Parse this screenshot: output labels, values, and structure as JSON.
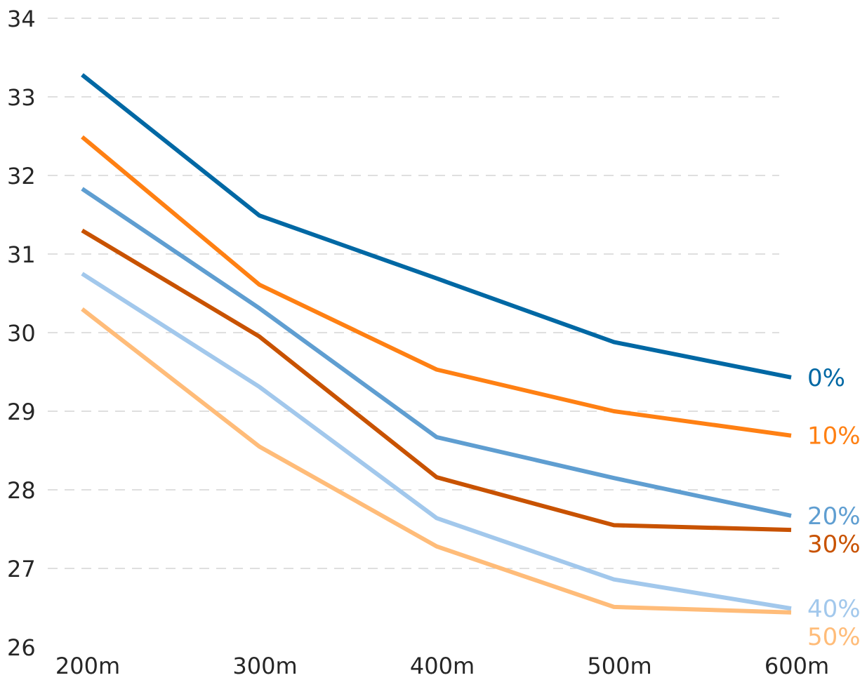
{
  "chart_data": {
    "type": "line",
    "categories": [
      "200m",
      "300m",
      "400m",
      "500m",
      "600m"
    ],
    "ylim": [
      26,
      34
    ],
    "yticks": [
      "26",
      "27",
      "28",
      "29",
      "30",
      "31",
      "32",
      "33",
      "34"
    ],
    "grid": "horizontal dashed",
    "legend": "inline labels at right end of each line",
    "series": [
      {
        "name": "0%",
        "color": "#0068a4",
        "values": [
          33.28,
          31.49,
          30.69,
          29.88,
          29.43
        ]
      },
      {
        "name": "10%",
        "color": "#ff8013",
        "values": [
          32.49,
          30.61,
          29.53,
          29.0,
          28.69
        ]
      },
      {
        "name": "20%",
        "color": "#5f9ed1",
        "values": [
          31.83,
          30.31,
          28.67,
          28.15,
          27.67
        ]
      },
      {
        "name": "30%",
        "color": "#c85200",
        "values": [
          31.3,
          29.95,
          28.16,
          27.55,
          27.49
        ]
      },
      {
        "name": "40%",
        "color": "#a2c8ec",
        "values": [
          30.75,
          29.31,
          27.64,
          26.86,
          26.49
        ]
      },
      {
        "name": "50%",
        "color": "#ffbc79",
        "values": [
          30.3,
          28.55,
          27.28,
          26.51,
          26.44
        ]
      }
    ]
  }
}
